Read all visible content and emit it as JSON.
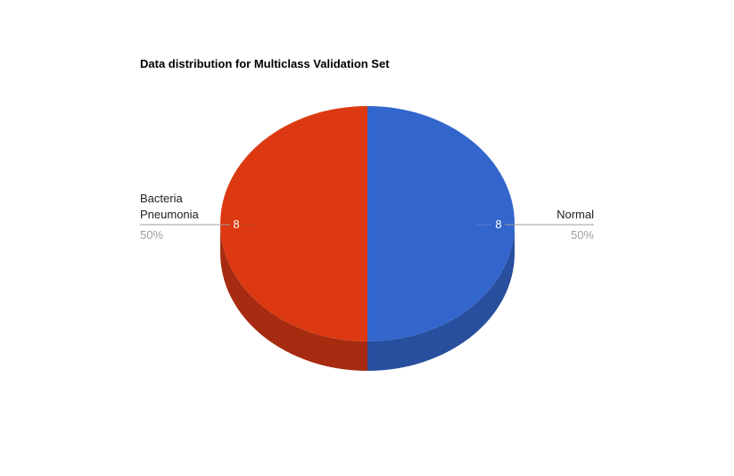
{
  "chart_data": {
    "type": "pie",
    "title": "Data distribution for Multiclass Validation Set",
    "is_3d": true,
    "slices": [
      {
        "label": "Normal",
        "value": 8,
        "percent": "50%",
        "color": "#3366CC",
        "side_color": "#274F9E"
      },
      {
        "label": "Bacteria Pneumonia",
        "label_lines": [
          "Bacteria",
          "Pneumonia"
        ],
        "value": 8,
        "percent": "50%",
        "color": "#DC3912",
        "side_color": "#A62B10"
      }
    ],
    "legend": "labels on slices"
  }
}
